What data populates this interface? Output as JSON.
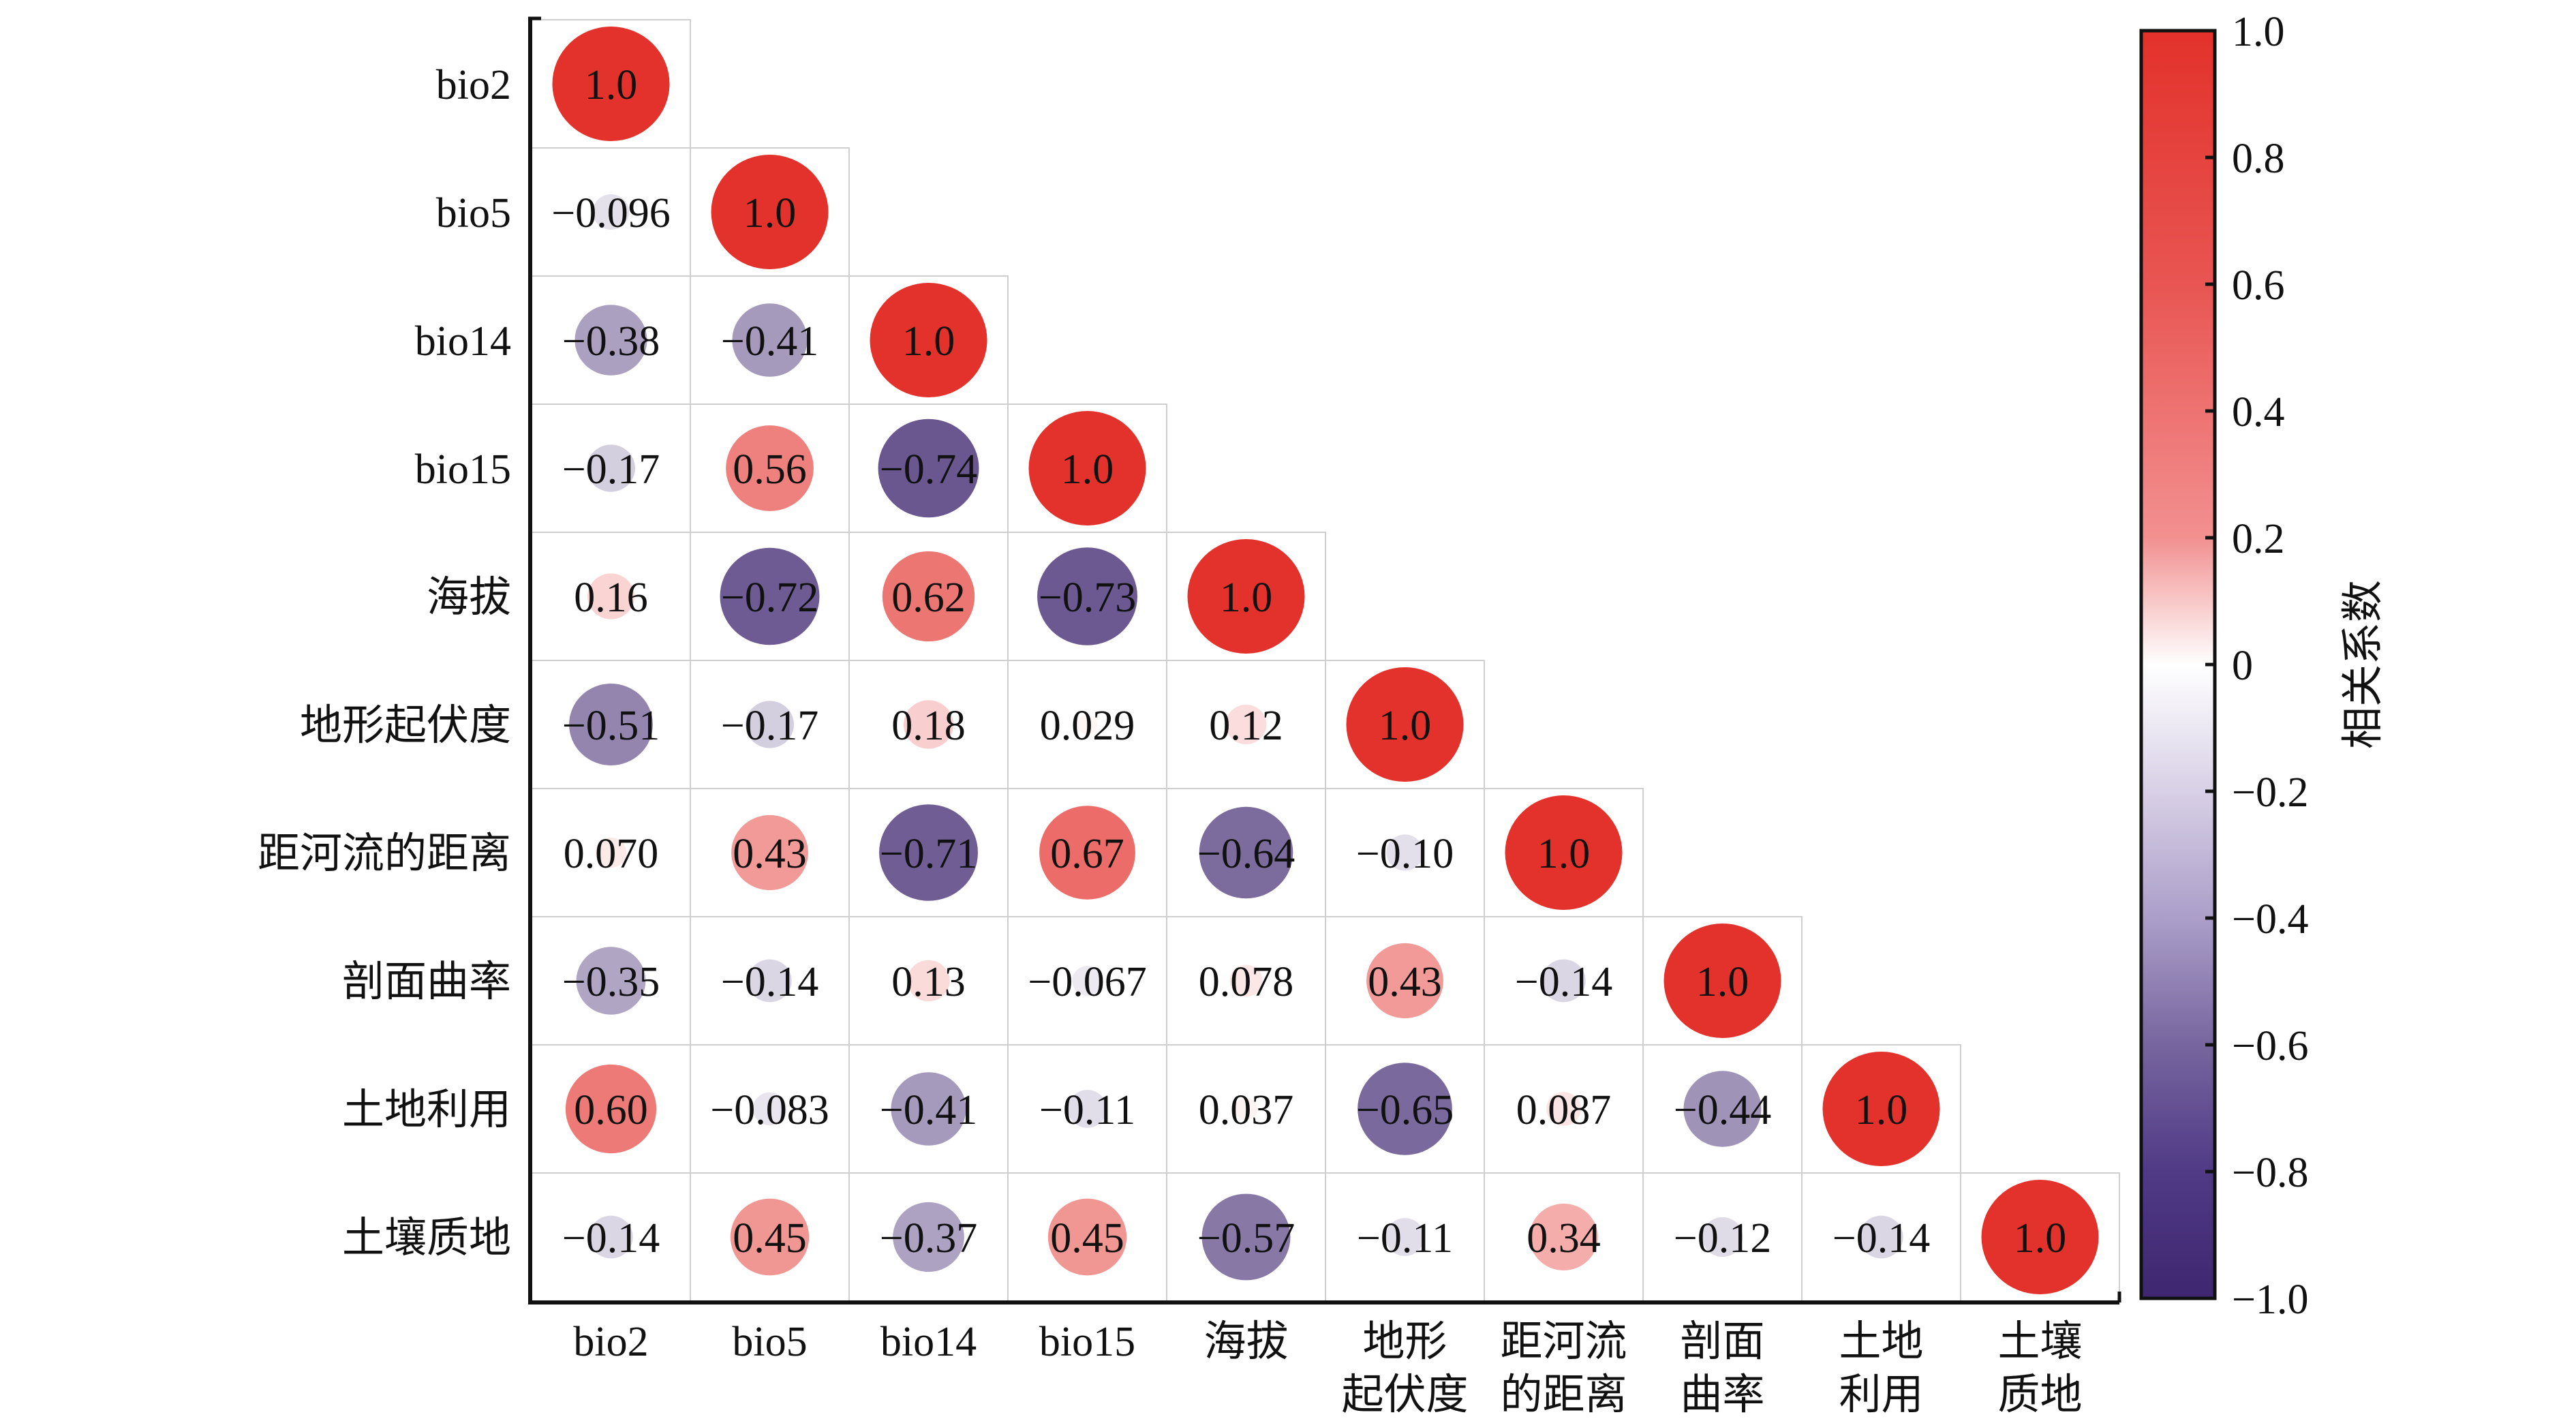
{
  "chart_data": {
    "type": "heatmap",
    "subtype": "lower-triangle correlation matrix with circles",
    "title": "",
    "variables": [
      "bio2",
      "bio5",
      "bio14",
      "bio15",
      "海拔",
      "地形起伏度",
      "距河流的距离",
      "剖面曲率",
      "土地利用",
      "土壤质地"
    ],
    "x_tick_labels": [
      [
        "bio2"
      ],
      [
        "bio5"
      ],
      [
        "bio14"
      ],
      [
        "bio15"
      ],
      [
        "海拔"
      ],
      [
        "地形",
        "起伏度"
      ],
      [
        "距河流",
        "的距离"
      ],
      [
        "剖面",
        "曲率"
      ],
      [
        "土地",
        "利用"
      ],
      [
        "土壤",
        "质地"
      ]
    ],
    "y_tick_labels": [
      "bio2",
      "bio5",
      "bio14",
      "bio15",
      "海拔",
      "地形起伏度",
      "距河流的距离",
      "剖面曲率",
      "土地利用",
      "土壤质地"
    ],
    "matrix": [
      [
        "1.0"
      ],
      [
        "-0.096",
        "1.0"
      ],
      [
        "-0.38",
        "-0.41",
        "1.0"
      ],
      [
        "-0.17",
        "0.56",
        "-0.74",
        "1.0"
      ],
      [
        "0.16",
        "-0.72",
        "0.62",
        "-0.73",
        "1.0"
      ],
      [
        "-0.51",
        "-0.17",
        "0.18",
        "0.029",
        "0.12",
        "1.0"
      ],
      [
        "0.070",
        "0.43",
        "-0.71",
        "0.67",
        "-0.64",
        "-0.10",
        "1.0"
      ],
      [
        "-0.35",
        "-0.14",
        "0.13",
        "-0.067",
        "0.078",
        "0.43",
        "-0.14",
        "1.0"
      ],
      [
        "0.60",
        "-0.083",
        "-0.41",
        "-0.11",
        "0.037",
        "-0.65",
        "0.087",
        "-0.44",
        "1.0"
      ],
      [
        "-0.14",
        "0.45",
        "-0.37",
        "0.45",
        "-0.57",
        "-0.11",
        "0.34",
        "-0.12",
        "-0.14",
        "1.0"
      ]
    ],
    "colorbar": {
      "label": "相关系数",
      "range": [
        -1.0,
        1.0
      ],
      "ticks": [
        1.0,
        0.8,
        0.6,
        0.4,
        0.2,
        0,
        -0.2,
        -0.4,
        -0.6,
        -0.8,
        -1.0
      ],
      "tick_labels": [
        "1.0",
        "0.8",
        "0.6",
        "0.4",
        "0.2",
        "0",
        "−0.2",
        "−0.4",
        "−0.6",
        "−0.8",
        "−1.0"
      ],
      "colors": {
        "positive": "#e3312b",
        "zero": "#ffffff",
        "negative": "#3f2670"
      },
      "placement": "right"
    },
    "grid": true
  }
}
